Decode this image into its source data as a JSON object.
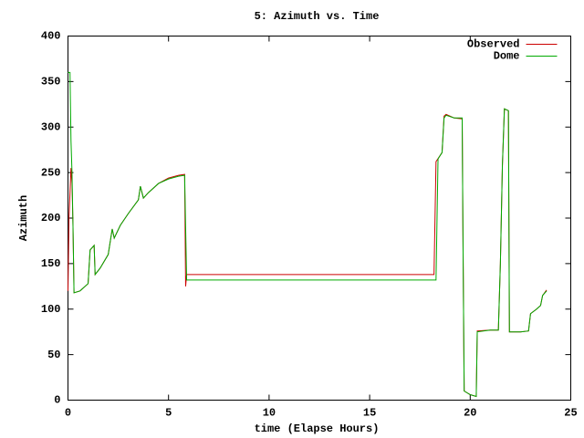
{
  "chart_data": {
    "type": "line",
    "title": "5: Azimuth vs. Time",
    "xlabel": "time (Elapse Hours)",
    "ylabel": "Azimuth",
    "xlim": [
      0,
      25
    ],
    "xticks": [
      0,
      5,
      10,
      15,
      20,
      25
    ],
    "ylim": [
      0,
      400
    ],
    "yticks": [
      0,
      50,
      100,
      150,
      200,
      250,
      300,
      350,
      400
    ],
    "legend": "top-right",
    "series": [
      {
        "name": "Observed",
        "color": "#cc0000",
        "x": [
          0,
          0.05,
          0.15,
          0.2,
          0.25,
          0.3,
          0.6,
          1.0,
          1.1,
          1.3,
          1.35,
          1.6,
          2.0,
          2.2,
          2.3,
          2.6,
          3.0,
          3.5,
          3.6,
          3.75,
          4.0,
          4.5,
          5.0,
          5.5,
          5.8,
          5.85,
          5.9,
          18.2,
          18.3,
          18.6,
          18.7,
          18.8,
          19.2,
          19.6,
          19.65,
          19.7,
          20.0,
          20.3,
          20.35,
          21.0,
          21.4,
          21.5,
          21.6,
          21.7,
          21.9,
          21.95,
          22.5,
          22.9,
          23.0,
          23.3,
          23.5,
          23.6,
          23.8
        ],
        "values": [
          120,
          200,
          255,
          238,
          190,
          118,
          120,
          128,
          165,
          170,
          138,
          145,
          160,
          188,
          178,
          192,
          205,
          220,
          235,
          222,
          228,
          238,
          244,
          247,
          248,
          125,
          138,
          138,
          262,
          272,
          312,
          314,
          310,
          309,
          150,
          10,
          6,
          4,
          76,
          77,
          77,
          150,
          258,
          320,
          318,
          75,
          75,
          76,
          95,
          100,
          104,
          115,
          121
        ]
      },
      {
        "name": "Dome",
        "color": "#00aa00",
        "x": [
          0,
          0.1,
          0.15,
          0.2,
          0.25,
          0.3,
          0.6,
          1.0,
          1.1,
          1.3,
          1.35,
          1.6,
          2.0,
          2.2,
          2.3,
          2.6,
          3.0,
          3.5,
          3.6,
          3.75,
          4.0,
          4.5,
          5.0,
          5.5,
          5.8,
          5.85,
          5.9,
          18.3,
          18.4,
          18.6,
          18.7,
          18.8,
          19.2,
          19.6,
          19.65,
          19.7,
          20.0,
          20.3,
          20.35,
          21.0,
          21.4,
          21.5,
          21.6,
          21.7,
          21.9,
          21.95,
          22.5,
          22.9,
          23.0,
          23.3,
          23.5,
          23.6,
          23.8
        ],
        "values": [
          360,
          360,
          285,
          250,
          190,
          118,
          120,
          128,
          165,
          170,
          138,
          145,
          160,
          188,
          178,
          192,
          205,
          220,
          235,
          222,
          228,
          238,
          243,
          246,
          247,
          190,
          132,
          132,
          265,
          272,
          310,
          313,
          310,
          310,
          150,
          10,
          6,
          4,
          75,
          77,
          77,
          150,
          258,
          320,
          318,
          75,
          75,
          76,
          95,
          100,
          104,
          115,
          120
        ]
      }
    ]
  }
}
